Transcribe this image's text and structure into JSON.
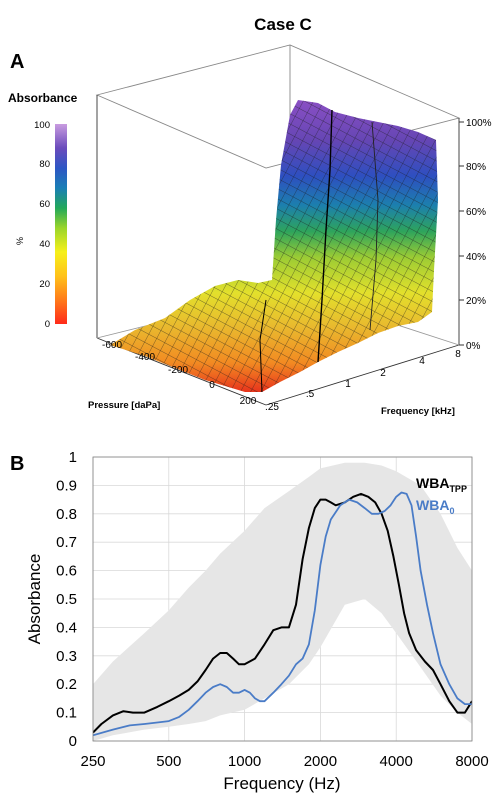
{
  "figure_title": "Case C",
  "panel_a": {
    "label": "A",
    "colorbar": {
      "title": "Absorbance",
      "unit": "%",
      "ticks": [
        "0",
        "20",
        "40",
        "60",
        "80",
        "100"
      ]
    },
    "right_axis_ticks": [
      "0%",
      "20%",
      "40%",
      "60%",
      "80%",
      "100%"
    ],
    "pressure_axis": {
      "label": "Pressure [daPa]",
      "ticks": [
        "-600",
        "-400",
        "-200",
        "0",
        "200"
      ]
    },
    "frequency_axis": {
      "label": "Frequency [kHz]",
      "ticks": [
        ".25",
        ".5",
        "1",
        "2",
        "4",
        "8"
      ]
    }
  },
  "panel_b": {
    "label": "B"
  },
  "chart_data": [
    {
      "type": "line",
      "panel": "B",
      "xlabel": "Frequency (Hz)",
      "ylabel": "Absorbance",
      "xscale": "log",
      "xlim": [
        250,
        8000
      ],
      "ylim": [
        0,
        1
      ],
      "x_ticks": [
        "250",
        "500",
        "1000",
        "2000",
        "4000",
        "8000"
      ],
      "y_ticks": [
        "0",
        "0.1",
        "0.2",
        "0.3",
        "0.4",
        "0.5",
        "0.6",
        "0.7",
        "0.8",
        "0.9",
        "1"
      ],
      "grid": true,
      "legend_position": "top-right",
      "norm_band": {
        "color": "#e6e6e6",
        "x": [
          250,
          300,
          400,
          500,
          600,
          700,
          800,
          1000,
          1200,
          1500,
          1800,
          2000,
          2500,
          3000,
          3500,
          4000,
          5000,
          6000,
          7000,
          8000
        ],
        "upper": [
          0.2,
          0.28,
          0.38,
          0.46,
          0.54,
          0.6,
          0.66,
          0.74,
          0.82,
          0.88,
          0.93,
          0.96,
          0.98,
          0.98,
          0.97,
          0.95,
          0.9,
          0.8,
          0.68,
          0.6
        ],
        "lower": [
          0.0,
          0.02,
          0.04,
          0.05,
          0.06,
          0.07,
          0.09,
          0.11,
          0.15,
          0.2,
          0.27,
          0.33,
          0.48,
          0.5,
          0.45,
          0.38,
          0.26,
          0.16,
          0.1,
          0.06
        ]
      },
      "series": [
        {
          "name_main": "WBA",
          "name_sub": "TPP",
          "color": "#000000",
          "x": [
            250,
            270,
            300,
            330,
            360,
            400,
            450,
            500,
            550,
            600,
            650,
            700,
            750,
            800,
            850,
            900,
            950,
            1000,
            1100,
            1200,
            1300,
            1400,
            1500,
            1600,
            1700,
            1800,
            1900,
            2000,
            2100,
            2200,
            2300,
            2500,
            2700,
            2900,
            3100,
            3300,
            3500,
            3700,
            3900,
            4100,
            4300,
            4500,
            4800,
            5200,
            5600,
            6000,
            6500,
            7000,
            7500,
            8000
          ],
          "y": [
            0.03,
            0.06,
            0.09,
            0.105,
            0.1,
            0.1,
            0.12,
            0.14,
            0.16,
            0.18,
            0.21,
            0.25,
            0.29,
            0.31,
            0.31,
            0.29,
            0.27,
            0.27,
            0.29,
            0.34,
            0.39,
            0.4,
            0.4,
            0.48,
            0.64,
            0.75,
            0.82,
            0.85,
            0.85,
            0.84,
            0.83,
            0.84,
            0.86,
            0.87,
            0.86,
            0.84,
            0.8,
            0.74,
            0.65,
            0.55,
            0.45,
            0.38,
            0.32,
            0.28,
            0.25,
            0.2,
            0.14,
            0.1,
            0.1,
            0.14
          ]
        },
        {
          "name_main": "WBA",
          "name_sub": "0",
          "color": "#4a7cc7",
          "x": [
            250,
            300,
            350,
            400,
            450,
            500,
            550,
            600,
            650,
            700,
            750,
            800,
            850,
            900,
            950,
            1000,
            1050,
            1100,
            1150,
            1200,
            1300,
            1400,
            1500,
            1600,
            1700,
            1800,
            1900,
            2000,
            2100,
            2200,
            2400,
            2600,
            2800,
            3000,
            3200,
            3400,
            3600,
            3800,
            4000,
            4200,
            4400,
            4600,
            4800,
            5000,
            5300,
            5600,
            6000,
            6500,
            7000,
            7500,
            8000
          ],
          "y": [
            0.02,
            0.04,
            0.055,
            0.06,
            0.065,
            0.07,
            0.085,
            0.11,
            0.14,
            0.17,
            0.19,
            0.2,
            0.19,
            0.17,
            0.17,
            0.18,
            0.17,
            0.15,
            0.14,
            0.14,
            0.17,
            0.2,
            0.23,
            0.27,
            0.29,
            0.34,
            0.46,
            0.62,
            0.72,
            0.78,
            0.83,
            0.85,
            0.84,
            0.82,
            0.8,
            0.8,
            0.81,
            0.83,
            0.86,
            0.875,
            0.87,
            0.83,
            0.72,
            0.6,
            0.48,
            0.38,
            0.27,
            0.2,
            0.15,
            0.13,
            0.13
          ]
        }
      ]
    }
  ]
}
